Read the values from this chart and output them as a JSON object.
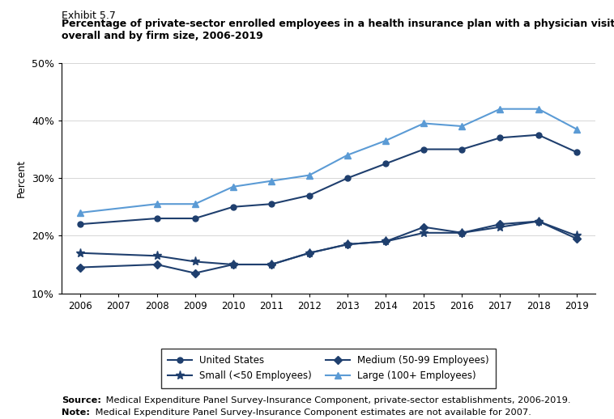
{
  "title_line1": "Exhibit 5.7",
  "title_line2": "Percentage of private-sector enrolled employees in a health insurance plan with a physician visit coinsurance rate,",
  "title_line3": "overall and by firm size, 2006-2019",
  "years": [
    2006,
    2008,
    2009,
    2010,
    2011,
    2012,
    2013,
    2014,
    2015,
    2016,
    2017,
    2018,
    2019
  ],
  "united_states": [
    22.0,
    23.0,
    23.0,
    25.0,
    25.5,
    27.0,
    30.0,
    32.5,
    35.0,
    35.0,
    37.0,
    37.5,
    34.5
  ],
  "small": [
    17.0,
    16.5,
    15.5,
    15.0,
    15.0,
    17.0,
    18.5,
    19.0,
    20.5,
    20.5,
    21.5,
    22.5,
    20.0
  ],
  "medium": [
    14.5,
    15.0,
    13.5,
    15.0,
    15.0,
    17.0,
    18.5,
    19.0,
    21.5,
    20.5,
    22.0,
    22.5,
    19.5
  ],
  "large": [
    24.0,
    25.5,
    25.5,
    28.5,
    29.5,
    30.5,
    34.0,
    36.5,
    39.5,
    39.0,
    42.0,
    42.0,
    38.5
  ],
  "dark_color": "#1f3f6e",
  "light_color": "#5b9bd5",
  "ylabel": "Percent",
  "ylim": [
    10,
    50
  ],
  "yticks": [
    10,
    20,
    30,
    40,
    50
  ],
  "source_bold": "Source:",
  "source_rest": " Medical Expenditure Panel Survey-Insurance Component, private-sector establishments, 2006-2019.",
  "note_bold": "Note:",
  "note_rest": " Medical Expenditure Panel Survey-Insurance Component estimates are not available for 2007."
}
